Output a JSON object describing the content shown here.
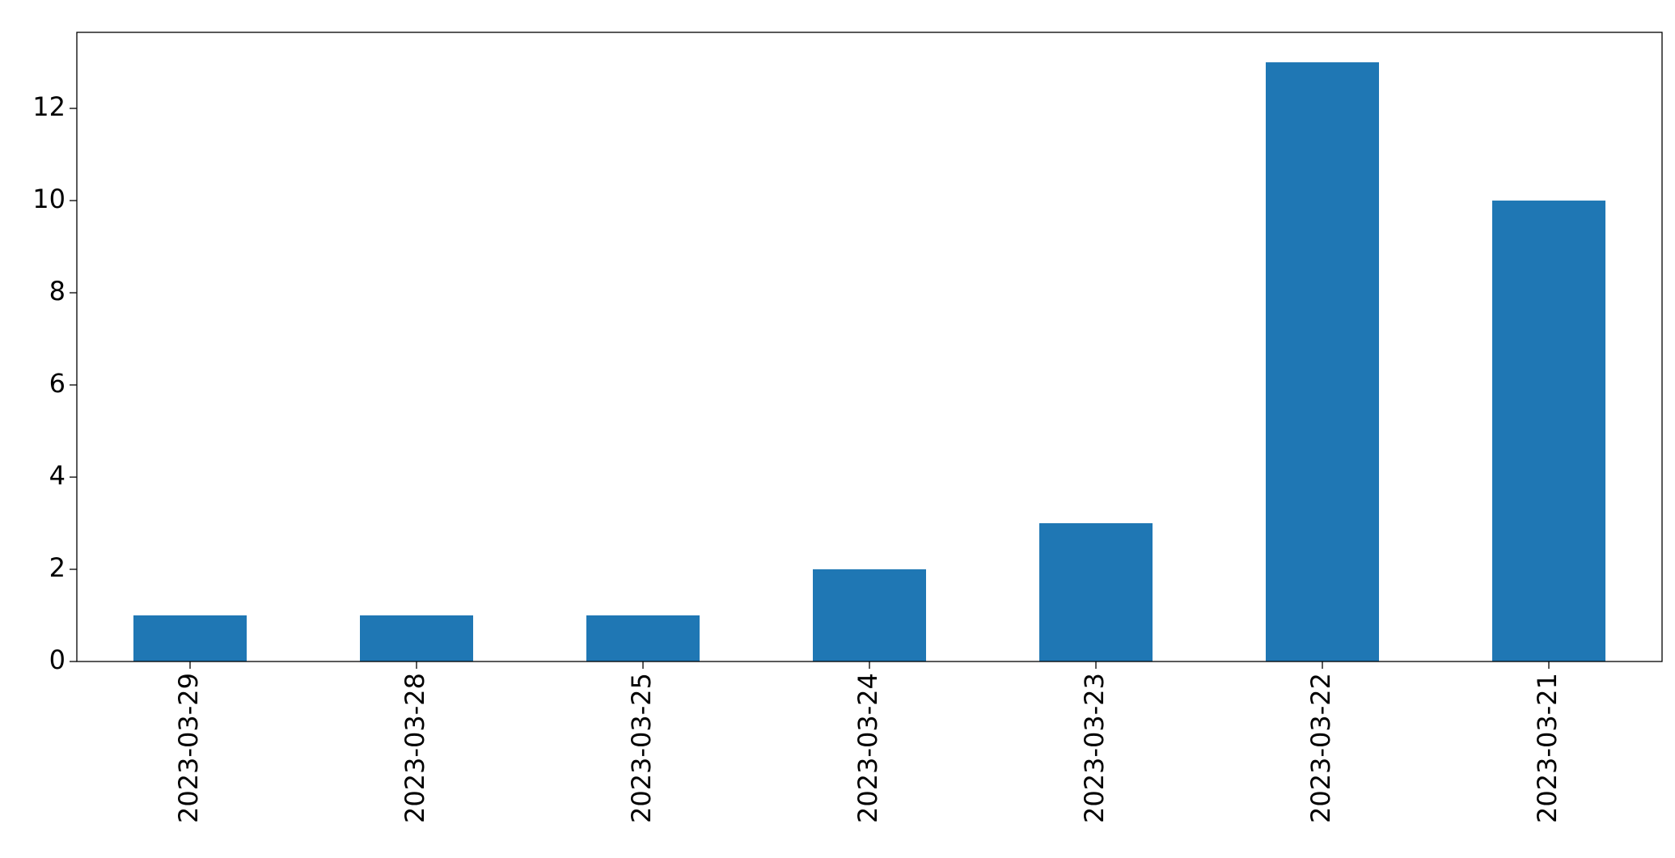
{
  "chart_data": {
    "type": "bar",
    "categories": [
      "2023-03-29",
      "2023-03-28",
      "2023-03-25",
      "2023-03-24",
      "2023-03-23",
      "2023-03-22",
      "2023-03-21"
    ],
    "values": [
      1,
      1,
      1,
      2,
      3,
      13,
      10
    ],
    "color": "#1f77b4",
    "ylim": [
      0,
      13.65
    ],
    "yticks": [
      0,
      2,
      4,
      6,
      8,
      10,
      12
    ],
    "grid": false
  }
}
